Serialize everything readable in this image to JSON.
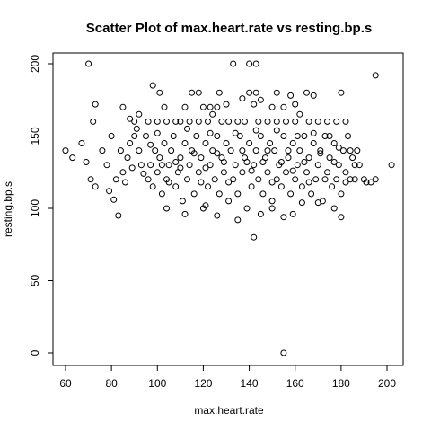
{
  "chart_data": {
    "type": "scatter",
    "title": "Scatter Plot of max.heart.rate vs resting.bp.s",
    "xlabel": "max.heart.rate",
    "ylabel": "resting.bp.s",
    "xlim": [
      60,
      202
    ],
    "ylim": [
      0,
      200
    ],
    "x_ticks": [
      60,
      80,
      100,
      120,
      140,
      160,
      180,
      200
    ],
    "y_ticks": [
      0,
      50,
      100,
      150,
      200
    ],
    "grid": false,
    "marker": "open-circle",
    "point_color": "#000000",
    "points": [
      [
        70,
        200
      ],
      [
        133,
        200
      ],
      [
        140,
        200
      ],
      [
        143,
        200
      ],
      [
        195,
        192
      ],
      [
        98,
        185
      ],
      [
        101,
        180
      ],
      [
        115,
        180
      ],
      [
        118,
        180
      ],
      [
        127,
        180
      ],
      [
        140,
        180
      ],
      [
        143,
        180
      ],
      [
        152,
        180
      ],
      [
        165,
        180
      ],
      [
        180,
        180
      ],
      [
        73,
        172
      ],
      [
        137,
        176
      ],
      [
        145,
        175
      ],
      [
        158,
        178
      ],
      [
        168,
        178
      ],
      [
        103,
        170
      ],
      [
        112,
        170
      ],
      [
        120,
        170
      ],
      [
        123,
        170
      ],
      [
        126,
        170
      ],
      [
        130,
        172
      ],
      [
        142,
        172
      ],
      [
        150,
        170
      ],
      [
        155,
        170
      ],
      [
        160,
        172
      ],
      [
        85,
        170
      ],
      [
        72,
        160
      ],
      [
        88,
        162
      ],
      [
        90,
        160
      ],
      [
        92,
        165
      ],
      [
        96,
        160
      ],
      [
        100,
        160
      ],
      [
        104,
        160
      ],
      [
        108,
        160
      ],
      [
        110,
        160
      ],
      [
        114,
        160
      ],
      [
        118,
        160
      ],
      [
        122,
        160
      ],
      [
        124,
        165
      ],
      [
        128,
        160
      ],
      [
        131,
        160
      ],
      [
        135,
        160
      ],
      [
        138,
        160
      ],
      [
        144,
        160
      ],
      [
        148,
        160
      ],
      [
        152,
        160
      ],
      [
        156,
        160
      ],
      [
        160,
        160
      ],
      [
        162,
        165
      ],
      [
        166,
        160
      ],
      [
        170,
        160
      ],
      [
        174,
        160
      ],
      [
        178,
        160
      ],
      [
        182,
        160
      ],
      [
        60,
        140
      ],
      [
        63,
        135
      ],
      [
        67,
        145
      ],
      [
        69,
        132
      ],
      [
        71,
        120
      ],
      [
        73,
        115
      ],
      [
        78,
        130
      ],
      [
        80,
        150
      ],
      [
        82,
        120
      ],
      [
        83,
        95
      ],
      [
        84,
        140
      ],
      [
        85,
        125
      ],
      [
        87,
        135
      ],
      [
        88,
        145
      ],
      [
        90,
        150
      ],
      [
        92,
        140
      ],
      [
        93,
        130
      ],
      [
        95,
        150
      ],
      [
        96,
        120
      ],
      [
        97,
        130
      ],
      [
        98,
        115
      ],
      [
        99,
        140
      ],
      [
        100,
        125
      ],
      [
        101,
        135
      ],
      [
        102,
        110
      ],
      [
        103,
        145
      ],
      [
        104,
        120
      ],
      [
        105,
        130
      ],
      [
        106,
        140
      ],
      [
        107,
        150
      ],
      [
        108,
        115
      ],
      [
        109,
        125
      ],
      [
        110,
        135
      ],
      [
        111,
        105
      ],
      [
        112,
        145
      ],
      [
        113,
        120
      ],
      [
        114,
        130
      ],
      [
        115,
        140
      ],
      [
        116,
        110
      ],
      [
        117,
        150
      ],
      [
        118,
        125
      ],
      [
        119,
        135
      ],
      [
        120,
        100
      ],
      [
        121,
        145
      ],
      [
        122,
        115
      ],
      [
        123,
        130
      ],
      [
        124,
        140
      ],
      [
        125,
        120
      ],
      [
        126,
        150
      ],
      [
        127,
        110
      ],
      [
        128,
        135
      ],
      [
        129,
        125
      ],
      [
        130,
        145
      ],
      [
        131,
        105
      ],
      [
        132,
        140
      ],
      [
        133,
        120
      ],
      [
        134,
        130
      ],
      [
        135,
        110
      ],
      [
        136,
        150
      ],
      [
        137,
        125
      ],
      [
        138,
        135
      ],
      [
        139,
        100
      ],
      [
        140,
        145
      ],
      [
        141,
        115
      ],
      [
        142,
        130
      ],
      [
        143,
        140
      ],
      [
        144,
        120
      ],
      [
        145,
        150
      ],
      [
        146,
        110
      ],
      [
        147,
        135
      ],
      [
        148,
        125
      ],
      [
        149,
        145
      ],
      [
        150,
        105
      ],
      [
        151,
        140
      ],
      [
        152,
        120
      ],
      [
        153,
        130
      ],
      [
        154,
        115
      ],
      [
        155,
        150
      ],
      [
        156,
        125
      ],
      [
        157,
        135
      ],
      [
        158,
        110
      ],
      [
        159,
        145
      ],
      [
        160,
        120
      ],
      [
        161,
        130
      ],
      [
        162,
        140
      ],
      [
        163,
        115
      ],
      [
        164,
        150
      ],
      [
        165,
        125
      ],
      [
        166,
        135
      ],
      [
        167,
        110
      ],
      [
        168,
        145
      ],
      [
        169,
        120
      ],
      [
        170,
        130
      ],
      [
        171,
        140
      ],
      [
        172,
        105
      ],
      [
        173,
        150
      ],
      [
        174,
        125
      ],
      [
        175,
        135
      ],
      [
        176,
        115
      ],
      [
        177,
        145
      ],
      [
        178,
        120
      ],
      [
        179,
        130
      ],
      [
        180,
        110
      ],
      [
        181,
        140
      ],
      [
        182,
        125
      ],
      [
        183,
        150
      ],
      [
        184,
        120
      ],
      [
        185,
        135
      ],
      [
        186,
        130
      ],
      [
        187,
        140
      ],
      [
        188,
        130
      ],
      [
        190,
        120
      ],
      [
        191,
        118
      ],
      [
        193,
        118
      ],
      [
        195,
        120
      ],
      [
        202,
        130
      ],
      [
        104,
        100
      ],
      [
        112,
        96
      ],
      [
        121,
        102
      ],
      [
        126,
        95
      ],
      [
        135,
        92
      ],
      [
        142,
        80
      ],
      [
        145,
        96
      ],
      [
        150,
        100
      ],
      [
        155,
        94
      ],
      [
        159,
        96
      ],
      [
        163,
        104
      ],
      [
        170,
        104
      ],
      [
        177,
        100
      ],
      [
        180,
        94
      ],
      [
        155,
        0
      ],
      [
        76,
        140
      ],
      [
        79,
        112
      ],
      [
        81,
        106
      ],
      [
        86,
        118
      ],
      [
        89,
        128
      ],
      [
        91,
        155
      ],
      [
        94,
        124
      ],
      [
        97,
        144
      ],
      [
        100,
        152
      ],
      [
        102,
        130
      ],
      [
        105,
        118
      ],
      [
        108,
        132
      ],
      [
        110,
        128
      ],
      [
        113,
        155
      ],
      [
        116,
        138
      ],
      [
        119,
        118
      ],
      [
        121,
        128
      ],
      [
        123,
        152
      ],
      [
        126,
        138
      ],
      [
        129,
        132
      ],
      [
        131,
        118
      ],
      [
        134,
        152
      ],
      [
        137,
        140
      ],
      [
        139,
        132
      ],
      [
        141,
        126
      ],
      [
        143,
        154
      ],
      [
        146,
        132
      ],
      [
        148,
        140
      ],
      [
        150,
        118
      ],
      [
        152,
        154
      ],
      [
        154,
        132
      ],
      [
        157,
        140
      ],
      [
        159,
        126
      ],
      [
        161,
        150
      ],
      [
        164,
        132
      ],
      [
        166,
        118
      ],
      [
        168,
        152
      ],
      [
        171,
        138
      ],
      [
        173,
        120
      ],
      [
        175,
        150
      ],
      [
        177,
        132
      ],
      [
        179,
        142
      ],
      [
        182,
        118
      ],
      [
        184,
        140
      ],
      [
        186,
        120
      ]
    ]
  }
}
